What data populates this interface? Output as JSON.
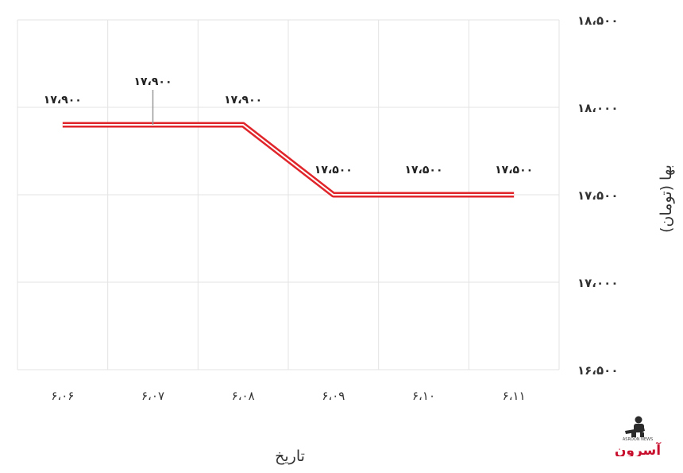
{
  "chart_data": {
    "type": "line",
    "categories": [
      "۶،۰۶",
      "۶،۰۷",
      "۶،۰۸",
      "۶،۰۹",
      "۶،۱۰",
      "۶،۱۱"
    ],
    "series": [
      {
        "values": [
          17900,
          17900,
          17900,
          17500,
          17500,
          17500
        ],
        "labels": [
          "۱۷،۹۰۰",
          "۱۷،۹۰۰",
          "۱۷،۹۰۰",
          "۱۷،۵۰۰",
          "۱۷،۵۰۰",
          "۱۷،۵۰۰"
        ]
      }
    ],
    "title": "",
    "xlabel": "تاریخ",
    "ylabel": "بها (تومان)",
    "ylim": [
      16500,
      18500
    ],
    "yticks": [
      {
        "value": 18500,
        "label": "۱۸،۵۰۰"
      },
      {
        "value": 18000,
        "label": "۱۸،۰۰۰"
      },
      {
        "value": 17500,
        "label": "۱۷،۵۰۰"
      },
      {
        "value": 17000,
        "label": "۱۷،۰۰۰"
      },
      {
        "value": 16500,
        "label": "۱۶،۵۰۰"
      }
    ],
    "grid": true,
    "y_axis_side": "right",
    "line_color": "#e0252b",
    "grid_color": "#e3e3e3"
  },
  "logo": {
    "text": "آسرون",
    "subtext": "ASROON NEWS",
    "color": "#c8102e"
  }
}
